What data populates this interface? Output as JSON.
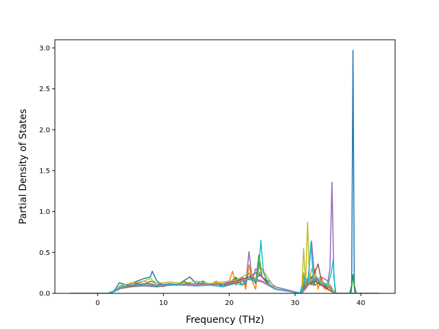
{
  "chart_data": {
    "type": "line",
    "title": "",
    "xlabel": "Frequency (THz)",
    "ylabel": "Partial Density of States",
    "xlim": [
      -6.5,
      45.2
    ],
    "ylim": [
      0,
      3.1
    ],
    "xticks": [
      0,
      10,
      20,
      30,
      40
    ],
    "yticks": [
      0.0,
      0.5,
      1.0,
      1.5,
      2.0,
      2.5,
      3.0
    ],
    "ytick_labels": [
      "0.0",
      "0.5",
      "1.0",
      "1.5",
      "2.0",
      "2.5",
      "3.0"
    ],
    "grid": false,
    "legend": "none",
    "series": [
      {
        "color": "#1f77b4",
        "x": [
          -4.2,
          1.5,
          2.5,
          3.3,
          4.5,
          6,
          7,
          8,
          8.3,
          9,
          10,
          11,
          12,
          13,
          14,
          15,
          16,
          17,
          18,
          19,
          20,
          21,
          22,
          23,
          24,
          25,
          26,
          27,
          30.8,
          31.3,
          31.8,
          32.3,
          32.8,
          33.3,
          33.8,
          34.3,
          34.8,
          35.3,
          35.8,
          36.2,
          38.3,
          38.6,
          38.8,
          39.0,
          39.3,
          42.7
        ],
        "y": [
          0,
          0,
          0.03,
          0.13,
          0.1,
          0.15,
          0.18,
          0.2,
          0.27,
          0.15,
          0.1,
          0.12,
          0.1,
          0.15,
          0.2,
          0.12,
          0.15,
          0.1,
          0.12,
          0.08,
          0.12,
          0.18,
          0.1,
          0.2,
          0.15,
          0.3,
          0.1,
          0.05,
          0,
          0.2,
          0.08,
          0.15,
          0.1,
          0.2,
          0.1,
          0.12,
          0.05,
          0.1,
          0.03,
          0,
          0,
          0.1,
          2.97,
          0.1,
          0,
          0
        ]
      },
      {
        "color": "#ff7f0e",
        "x": [
          -4.2,
          1.5,
          2.5,
          3.5,
          4.5,
          5,
          6,
          7,
          8,
          9,
          10,
          11,
          12,
          13,
          14,
          15,
          16,
          17,
          18,
          19,
          20,
          20.5,
          21,
          22,
          22.5,
          23,
          23.5,
          24,
          24.5,
          25,
          26,
          27,
          31,
          31.3,
          31.6,
          32,
          32.5,
          33,
          33.5,
          34,
          34.5,
          35,
          35.5,
          36,
          42.7
        ],
        "y": [
          0,
          0,
          0.02,
          0.1,
          0.08,
          0.13,
          0.12,
          0.15,
          0.12,
          0.1,
          0.08,
          0.12,
          0.1,
          0.13,
          0.12,
          0.1,
          0.12,
          0.1,
          0.15,
          0.1,
          0.15,
          0.27,
          0.1,
          0.2,
          0.05,
          0.35,
          0.15,
          0.05,
          0.38,
          0.2,
          0.1,
          0.05,
          0,
          0.25,
          0.05,
          0.2,
          0.1,
          0.3,
          0.05,
          0.2,
          0.05,
          0.15,
          0.05,
          0,
          0
        ]
      },
      {
        "color": "#2ca02c",
        "x": [
          -4.2,
          1.5,
          2.5,
          3.5,
          5,
          6,
          7,
          8,
          9,
          10,
          11,
          12,
          13,
          14,
          15,
          16,
          17,
          18,
          19,
          20,
          21,
          21.5,
          22,
          23,
          24,
          24.5,
          25,
          26,
          27,
          31,
          31.5,
          32,
          32.5,
          33,
          34,
          35,
          36,
          38.5,
          38.8,
          39.1,
          42.7
        ],
        "y": [
          0,
          0,
          0.02,
          0.08,
          0.1,
          0.12,
          0.1,
          0.15,
          0.12,
          0.1,
          0.12,
          0.1,
          0.15,
          0.12,
          0.1,
          0.13,
          0.1,
          0.12,
          0.1,
          0.12,
          0.2,
          0.15,
          0.1,
          0.25,
          0.12,
          0.47,
          0.2,
          0.1,
          0.05,
          0,
          0.15,
          0.1,
          0.2,
          0.1,
          0.15,
          0.05,
          0,
          0,
          0.23,
          0,
          0
        ]
      },
      {
        "color": "#d62728",
        "x": [
          -4.2,
          1.5,
          2.5,
          3.5,
          5,
          7,
          9,
          11,
          13,
          15,
          17,
          19,
          21,
          22,
          23,
          24,
          25,
          26,
          27,
          31,
          32,
          33,
          34,
          35,
          36,
          42.7
        ],
        "y": [
          0,
          0,
          0.02,
          0.06,
          0.08,
          0.1,
          0.08,
          0.1,
          0.12,
          0.1,
          0.12,
          0.1,
          0.12,
          0.15,
          0.2,
          0.25,
          0.2,
          0.12,
          0.05,
          0,
          0.1,
          0.15,
          0.1,
          0.05,
          0,
          0
        ]
      },
      {
        "color": "#9467bd",
        "x": [
          -4.2,
          1.5,
          2.5,
          3.5,
          5,
          7,
          9,
          11,
          13,
          15,
          17,
          19,
          21,
          22,
          22.5,
          23,
          23.5,
          24,
          25,
          26,
          27,
          31,
          32,
          32.5,
          33,
          34,
          35,
          35.3,
          35.6,
          35.9,
          36.2,
          42.7
        ],
        "y": [
          0,
          0,
          0.02,
          0.08,
          0.1,
          0.12,
          0.1,
          0.12,
          0.1,
          0.12,
          0.1,
          0.12,
          0.15,
          0.2,
          0.1,
          0.51,
          0.15,
          0.3,
          0.2,
          0.15,
          0.08,
          0,
          0.2,
          0.64,
          0.15,
          0.2,
          0.15,
          0.3,
          1.36,
          0.2,
          0,
          0
        ]
      },
      {
        "color": "#8c564b",
        "x": [
          -4.2,
          1.5,
          2.5,
          3.5,
          5,
          7,
          9,
          11,
          13,
          15,
          17,
          19,
          21,
          23,
          25,
          27,
          31,
          32,
          33,
          33.5,
          34,
          35,
          36,
          42.7
        ],
        "y": [
          0,
          0,
          0.02,
          0.07,
          0.09,
          0.1,
          0.08,
          0.1,
          0.12,
          0.1,
          0.12,
          0.1,
          0.15,
          0.2,
          0.15,
          0.05,
          0,
          0.15,
          0.25,
          0.36,
          0.15,
          0.1,
          0,
          0
        ]
      },
      {
        "color": "#e377c2",
        "x": [
          -4.2,
          1.5,
          2.5,
          3.5,
          5,
          7,
          9,
          11,
          13,
          15,
          17,
          19,
          21,
          23,
          25,
          27,
          31,
          32,
          33,
          34,
          35,
          36,
          42.7
        ],
        "y": [
          0,
          0,
          0.02,
          0.07,
          0.08,
          0.1,
          0.09,
          0.1,
          0.11,
          0.1,
          0.12,
          0.1,
          0.14,
          0.18,
          0.15,
          0.06,
          0,
          0.12,
          0.2,
          0.15,
          0.1,
          0,
          0
        ]
      },
      {
        "color": "#7f7f7f",
        "x": [
          -4.2,
          1.5,
          2.5,
          3.5,
          5,
          7,
          9,
          11,
          13,
          15,
          17,
          19,
          21,
          23,
          25,
          27,
          31,
          32,
          33,
          34,
          35,
          36,
          42.7
        ],
        "y": [
          0,
          0,
          0.02,
          0.06,
          0.08,
          0.09,
          0.08,
          0.1,
          0.1,
          0.09,
          0.11,
          0.1,
          0.13,
          0.17,
          0.14,
          0.05,
          0,
          0.1,
          0.18,
          0.12,
          0.08,
          0,
          0
        ]
      },
      {
        "color": "#bcbd22",
        "x": [
          -4.2,
          1.5,
          2.5,
          3.5,
          5,
          7,
          8,
          9,
          11,
          13,
          15,
          17,
          19,
          21,
          23,
          24,
          25,
          27,
          31,
          31.3,
          31.6,
          31.9,
          32.2,
          32.5,
          33,
          34,
          35,
          36,
          42.7
        ],
        "y": [
          0,
          0,
          0.02,
          0.1,
          0.12,
          0.15,
          0.18,
          0.12,
          0.14,
          0.12,
          0.15,
          0.12,
          0.14,
          0.16,
          0.25,
          0.18,
          0.3,
          0.05,
          0,
          0.55,
          0.1,
          0.87,
          0.15,
          0.3,
          0.2,
          0.15,
          0.1,
          0,
          0
        ]
      },
      {
        "color": "#17becf",
        "x": [
          -4.2,
          1.5,
          2.5,
          3.5,
          5,
          7,
          9,
          11,
          13,
          15,
          17,
          19,
          21,
          22,
          23,
          24,
          24.5,
          24.8,
          25.2,
          26,
          27,
          31,
          31.5,
          32,
          32.4,
          32.8,
          33.2,
          34,
          35,
          35.5,
          35.8,
          36.1,
          42.7
        ],
        "y": [
          0,
          0,
          0.02,
          0.08,
          0.1,
          0.1,
          0.09,
          0.11,
          0.1,
          0.09,
          0.1,
          0.08,
          0.12,
          0.1,
          0.2,
          0.15,
          0.3,
          0.65,
          0.25,
          0.12,
          0.05,
          0,
          0.2,
          0.12,
          0.62,
          0.15,
          0.2,
          0.12,
          0.1,
          0.25,
          0.41,
          0,
          0
        ]
      }
    ]
  }
}
